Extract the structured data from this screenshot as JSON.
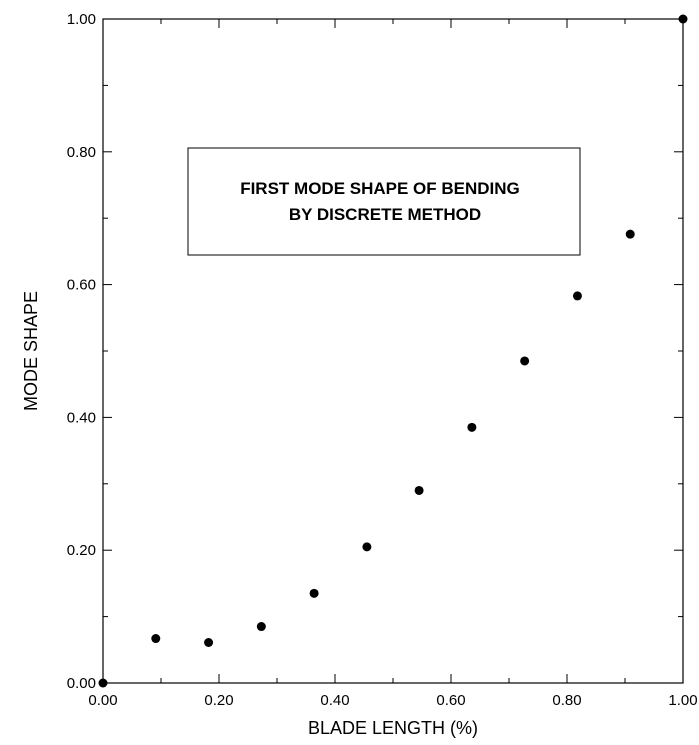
{
  "chart_data": {
    "type": "scatter",
    "title": "",
    "xlabel": "BLADE LENGTH (%)",
    "ylabel": "MODE SHAPE",
    "xlim": [
      0,
      1
    ],
    "ylim": [
      0,
      1
    ],
    "grid": false,
    "x_ticks": [
      0,
      0.2,
      0.4,
      0.6,
      0.8,
      1.0
    ],
    "y_ticks": [
      0,
      0.2,
      0.4,
      0.6,
      0.8,
      1.0
    ],
    "x_tick_labels": [
      "0.00",
      "0.20",
      "0.40",
      "0.60",
      "0.80",
      "1.00"
    ],
    "y_tick_labels": [
      "0.00",
      "0.20",
      "0.40",
      "0.60",
      "0.80",
      "1.00"
    ],
    "annotation": {
      "line1": "FIRST MODE SHAPE OF BENDING",
      "line2": "BY DISCRETE METHOD"
    },
    "series": [
      {
        "x": [
          0.0,
          0.091,
          0.182,
          0.273,
          0.364,
          0.455,
          0.545,
          0.636,
          0.727,
          0.818,
          0.909,
          1.0
        ],
        "y": [
          0.0,
          0.067,
          0.061,
          0.085,
          0.135,
          0.205,
          0.29,
          0.385,
          0.485,
          0.583,
          0.676,
          1.0
        ]
      }
    ],
    "colors": {
      "marker": "#000000",
      "axis": "#000000"
    }
  }
}
